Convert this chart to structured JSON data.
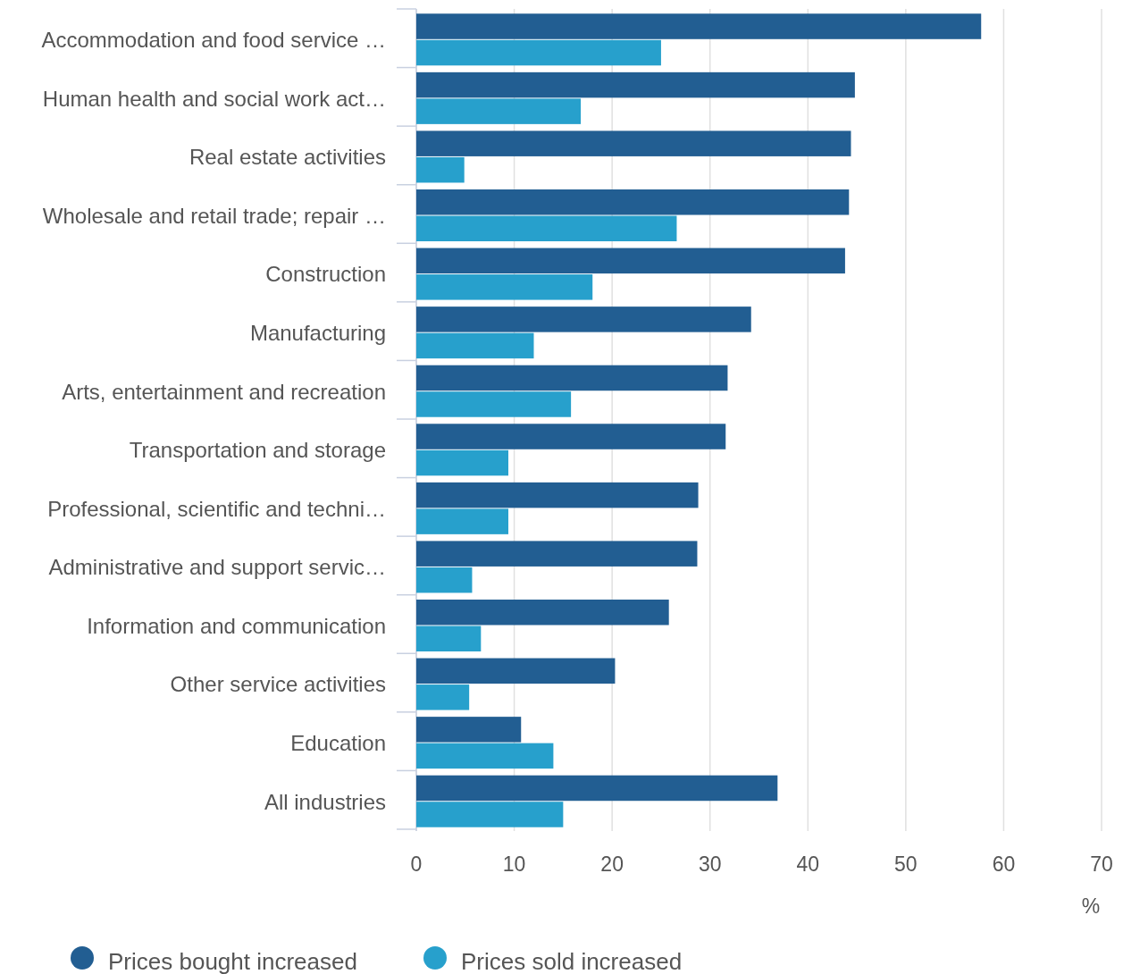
{
  "chart_data": {
    "type": "bar",
    "orientation": "horizontal",
    "xlabel": "%",
    "categories": [
      "Accommodation and food service …",
      "Human health and social work act…",
      "Real estate activities",
      "Wholesale and retail trade; repair …",
      "Construction",
      "Manufacturing",
      "Arts, entertainment and recreation",
      "Transportation and storage",
      "Professional, scientific and techni…",
      "Administrative and support servic…",
      "Information and communication",
      "Other service activities",
      "Education",
      "All industries"
    ],
    "series": [
      {
        "name": "Prices bought increased",
        "color": "#225e92",
        "values": [
          57.7,
          44.8,
          44.4,
          44.2,
          43.8,
          34.2,
          31.8,
          31.6,
          28.8,
          28.7,
          25.8,
          20.3,
          10.7,
          36.9
        ]
      },
      {
        "name": "Prices sold increased",
        "color": "#27a0cc",
        "values": [
          25.0,
          16.8,
          4.9,
          26.6,
          18.0,
          12.0,
          15.8,
          9.4,
          9.4,
          5.7,
          6.6,
          5.4,
          14.0,
          15.0
        ]
      }
    ],
    "xlim": [
      0,
      70
    ],
    "xticks": [
      0,
      10,
      20,
      30,
      40,
      50,
      60,
      70
    ],
    "grid": "x",
    "legend": "bottom"
  }
}
